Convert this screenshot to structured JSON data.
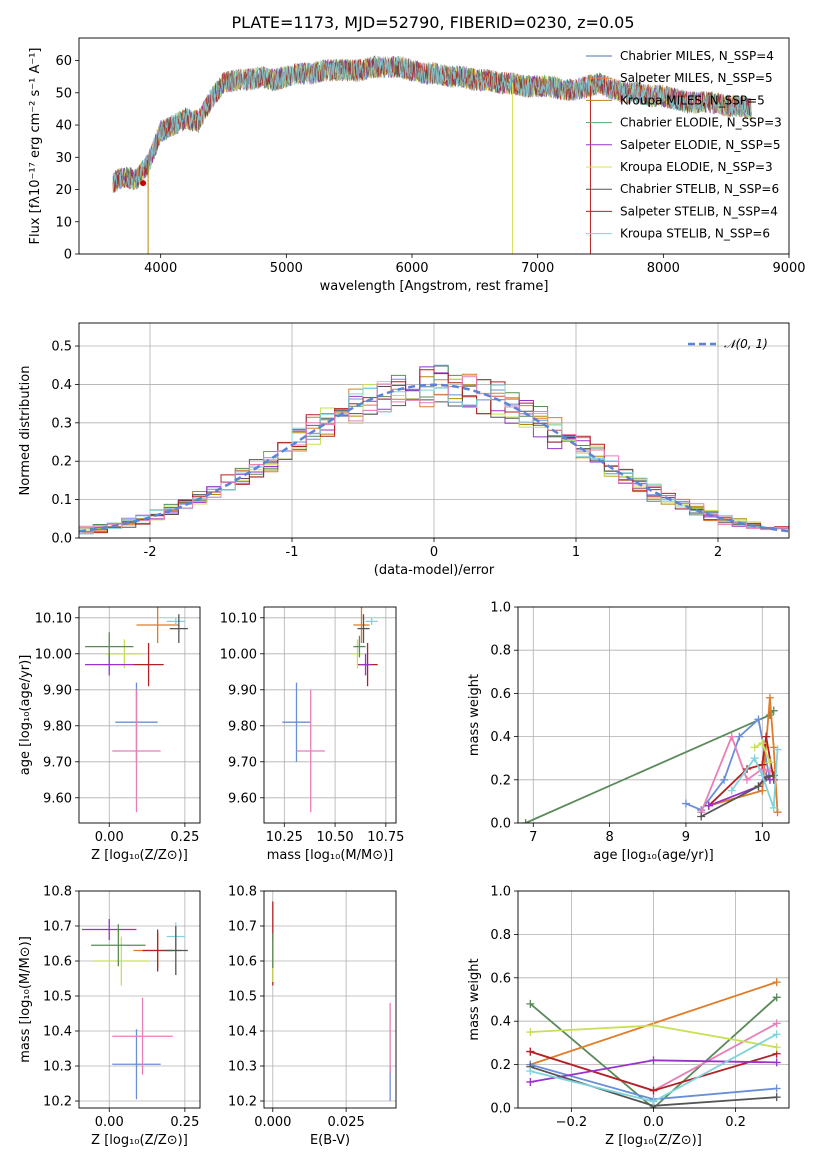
{
  "figure": {
    "title": "PLATE=1173, MJD=52790, FIBERID=0230, z=0.05"
  },
  "chart_data": [
    {
      "type": "line",
      "id": "spectrum",
      "xlabel": "wavelength [Angstrom, rest frame]",
      "ylabel": "Flux [fλ10⁻¹⁷ erg cm⁻² s⁻¹ A⁻¹]",
      "xlim": [
        3350,
        9000
      ],
      "ylim": [
        0,
        67
      ],
      "xticks": [
        4000,
        5000,
        6000,
        7000,
        8000,
        9000
      ],
      "yticks": [
        0,
        10,
        20,
        30,
        40,
        50,
        60
      ],
      "grid": false,
      "legend_position": "upper-right",
      "continuum": {
        "x": [
          3620,
          3700,
          3800,
          3900,
          4000,
          4100,
          4200,
          4300,
          4400,
          4500,
          4600,
          4700,
          4800,
          4900,
          5000,
          5100,
          5200,
          5300,
          5400,
          5500,
          5600,
          5700,
          5800,
          5900,
          6000,
          6100,
          6200,
          6300,
          6400,
          6500,
          6600,
          6700,
          6800,
          6900,
          7000,
          7100,
          7200,
          7300,
          7400,
          7500,
          7600,
          7700,
          7800,
          7900,
          8000,
          8100,
          8200,
          8300,
          8400,
          8500,
          8600,
          8700
        ],
        "y": [
          22,
          24,
          23,
          28,
          38,
          40,
          42,
          41,
          48,
          53,
          54,
          54,
          55,
          54,
          55,
          56,
          56,
          57,
          57,
          57,
          57,
          58,
          58,
          58,
          57,
          56,
          56,
          55,
          55,
          54,
          54,
          53,
          53,
          52,
          52,
          52,
          51,
          51,
          52,
          53,
          51,
          50,
          50,
          49,
          49,
          48,
          47,
          47,
          47,
          46,
          46,
          45
        ]
      },
      "series": [
        {
          "name": "Chabrier MILES, N_SSP=4",
          "color": "#4c72b0"
        },
        {
          "name": "Salpeter MILES, N_SSP=5",
          "color": "#dd8452"
        },
        {
          "name": "Kroupa MILES, N_SSP=5",
          "color": "#b8860b"
        },
        {
          "name": "Chabrier ELODIE, N_SSP=3",
          "color": "#55a868"
        },
        {
          "name": "Salpeter ELODIE, N_SSP=5",
          "color": "#9932cc"
        },
        {
          "name": "Kroupa ELODIE, N_SSP=3",
          "color": "#d8e05a"
        },
        {
          "name": "Chabrier STELIB, N_SSP=6",
          "color": "#555555"
        },
        {
          "name": "Salpeter STELIB, N_SSP=4",
          "color": "#b22222"
        },
        {
          "name": "Kroupa STELIB, N_SSP=6",
          "color": "#7fd3dd"
        }
      ]
    },
    {
      "type": "line",
      "id": "residuals",
      "xlabel": "(data-model)/error",
      "ylabel": "Normed distribution",
      "xlim": [
        -2.5,
        2.5
      ],
      "ylim": [
        0,
        0.56
      ],
      "xticks": [
        -2,
        -1,
        0,
        1,
        2
      ],
      "yticks": [
        0.0,
        0.1,
        0.2,
        0.3,
        0.4,
        0.5
      ],
      "grid": true,
      "legend": "𝒩(0, 1)",
      "legend_position": "upper-right",
      "histogram_bins": 50,
      "reference_curve": "gaussian(0,1)"
    },
    {
      "type": "scatter",
      "id": "age-vs-Z",
      "xlabel": "Z [log₁₀(Z/Z⊙)]",
      "ylabel": "age  [log₁₀(age/yr)]",
      "xlim": [
        -0.1,
        0.3
      ],
      "ylim": [
        9.53,
        10.13
      ],
      "xticks": [
        0.0,
        0.25
      ],
      "xtick_labels": [
        "0.00",
        "0.25"
      ],
      "yticks": [
        9.6,
        9.7,
        9.8,
        9.9,
        10.0,
        10.1
      ],
      "grid": true,
      "points": [
        {
          "x": 0.09,
          "y": 9.81,
          "xerr": 0.07,
          "yerr": 0.11,
          "color": "#6a8fd8"
        },
        {
          "x": 0.09,
          "y": 9.73,
          "xerr": 0.08,
          "yerr": 0.17,
          "color": "#e87fb8"
        },
        {
          "x": 0.16,
          "y": 10.08,
          "xerr": 0.07,
          "yerr": 0.05,
          "color": "#e07b28"
        },
        {
          "x": 0.13,
          "y": 9.97,
          "xerr": 0.05,
          "yerr": 0.06,
          "color": "#b22222"
        },
        {
          "x": 0.22,
          "y": 10.09,
          "xerr": 0.03,
          "yerr": 0.01,
          "color": "#7fd3dd"
        },
        {
          "x": 0.23,
          "y": 10.07,
          "xerr": 0.03,
          "yerr": 0.04,
          "color": "#555555"
        },
        {
          "x": 0.05,
          "y": 10.0,
          "xerr": 0.06,
          "yerr": 0.04,
          "color": "#c6e05a"
        },
        {
          "x": 0.0,
          "y": 9.97,
          "xerr": 0.08,
          "yerr": 0.03,
          "color": "#9932cc"
        },
        {
          "x": 0.0,
          "y": 10.02,
          "xerr": 0.08,
          "yerr": 0.04,
          "color": "#5a8a5a"
        }
      ]
    },
    {
      "type": "scatter",
      "id": "age-vs-mass",
      "xlabel": "mass [log₁₀(M/M⊙)]",
      "ylabel": "",
      "xlim": [
        10.15,
        10.8
      ],
      "ylim": [
        9.53,
        10.13
      ],
      "xticks": [
        10.25,
        10.5,
        10.75
      ],
      "xtick_labels": [
        "10.25",
        "10.50",
        "10.75"
      ],
      "yticks": [
        9.6,
        9.7,
        9.8,
        9.9,
        10.0,
        10.1
      ],
      "grid": true,
      "points": [
        {
          "x": 10.31,
          "y": 9.81,
          "xerr": 0.07,
          "yerr": 0.11,
          "color": "#6a8fd8"
        },
        {
          "x": 10.38,
          "y": 9.73,
          "xerr": 0.07,
          "yerr": 0.17,
          "color": "#e87fb8"
        },
        {
          "x": 10.63,
          "y": 10.08,
          "xerr": 0.04,
          "yerr": 0.05,
          "color": "#e07b28"
        },
        {
          "x": 10.66,
          "y": 9.97,
          "xerr": 0.05,
          "yerr": 0.06,
          "color": "#b22222"
        },
        {
          "x": 10.68,
          "y": 10.09,
          "xerr": 0.03,
          "yerr": 0.01,
          "color": "#7fd3dd"
        },
        {
          "x": 10.64,
          "y": 10.07,
          "xerr": 0.03,
          "yerr": 0.04,
          "color": "#555555"
        },
        {
          "x": 10.61,
          "y": 10.0,
          "xerr": 0.03,
          "yerr": 0.04,
          "color": "#c6e05a"
        },
        {
          "x": 10.65,
          "y": 9.97,
          "xerr": 0.03,
          "yerr": 0.03,
          "color": "#9932cc"
        },
        {
          "x": 10.62,
          "y": 10.02,
          "xerr": 0.03,
          "yerr": 0.03,
          "color": "#5a8a5a"
        }
      ]
    },
    {
      "type": "line",
      "id": "mass-weight-vs-age",
      "xlabel": "age  [log₁₀(age/yr)]",
      "ylabel": "mass weight",
      "xlim": [
        6.8,
        10.35
      ],
      "ylim": [
        0.0,
        1.0
      ],
      "xticks": [
        7,
        8,
        9,
        10
      ],
      "yticks": [
        0.0,
        0.2,
        0.4,
        0.6,
        0.8,
        1.0
      ],
      "grid": true,
      "series": [
        {
          "color": "#5a8a5a",
          "x": [
            6.9,
            10.1,
            10.15
          ],
          "y": [
            0.0,
            0.5,
            0.52
          ]
        },
        {
          "color": "#6a8fd8",
          "x": [
            9.0,
            9.2,
            9.5,
            9.7,
            9.95,
            10.1
          ],
          "y": [
            0.09,
            0.06,
            0.2,
            0.4,
            0.48,
            0.2
          ]
        },
        {
          "color": "#e07b28",
          "x": [
            9.3,
            10.0,
            10.1,
            10.15,
            10.2
          ],
          "y": [
            0.08,
            0.15,
            0.58,
            0.35,
            0.05
          ]
        },
        {
          "color": "#e87fb8",
          "x": [
            9.2,
            9.6,
            9.8,
            10.0,
            10.1
          ],
          "y": [
            0.05,
            0.4,
            0.2,
            0.25,
            0.24
          ]
        },
        {
          "color": "#b22222",
          "x": [
            9.3,
            9.8,
            10.0,
            10.05,
            10.15
          ],
          "y": [
            0.08,
            0.25,
            0.27,
            0.4,
            0.2
          ]
        },
        {
          "color": "#9932cc",
          "x": [
            9.3,
            9.95,
            10.05,
            10.1
          ],
          "y": [
            0.08,
            0.17,
            0.22,
            0.2
          ]
        },
        {
          "color": "#c6e05a",
          "x": [
            9.9,
            10.0,
            10.1
          ],
          "y": [
            0.35,
            0.37,
            0.28
          ]
        },
        {
          "color": "#555555",
          "x": [
            9.2,
            9.95,
            10.05,
            10.15
          ],
          "y": [
            0.03,
            0.17,
            0.21,
            0.22
          ]
        },
        {
          "color": "#7fd3dd",
          "x": [
            9.6,
            9.9,
            10.0,
            10.15,
            10.2
          ],
          "y": [
            0.15,
            0.3,
            0.22,
            0.07,
            0.34
          ]
        }
      ]
    },
    {
      "type": "scatter",
      "id": "mass-vs-Z",
      "xlabel": "Z [log₁₀(Z/Z⊙)]",
      "ylabel": "mass [log₁₀(M/M⊙)]",
      "xlim": [
        -0.1,
        0.3
      ],
      "ylim": [
        10.18,
        10.8
      ],
      "xticks": [
        0.0,
        0.25
      ],
      "xtick_labels": [
        "0.00",
        "0.25"
      ],
      "yticks": [
        10.2,
        10.3,
        10.4,
        10.5,
        10.6,
        10.7,
        10.8
      ],
      "grid": true,
      "points": [
        {
          "x": 0.09,
          "y": 10.305,
          "xerr": 0.08,
          "yerr": 0.1,
          "color": "#6a8fd8"
        },
        {
          "x": 0.11,
          "y": 10.385,
          "xerr": 0.1,
          "yerr": 0.11,
          "color": "#e87fb8"
        },
        {
          "x": 0.16,
          "y": 10.63,
          "xerr": 0.08,
          "yerr": 0.05,
          "color": "#e07b28"
        },
        {
          "x": 0.16,
          "y": 10.63,
          "xerr": 0.05,
          "yerr": 0.06,
          "color": "#b22222"
        },
        {
          "x": 0.22,
          "y": 10.67,
          "xerr": 0.03,
          "yerr": 0.04,
          "color": "#7fd3dd"
        },
        {
          "x": 0.22,
          "y": 10.63,
          "xerr": 0.04,
          "yerr": 0.07,
          "color": "#555555"
        },
        {
          "x": 0.04,
          "y": 10.6,
          "xerr": 0.09,
          "yerr": 0.07,
          "color": "#c6e05a"
        },
        {
          "x": 0.0,
          "y": 10.69,
          "xerr": 0.09,
          "yerr": 0.03,
          "color": "#9932cc"
        },
        {
          "x": 0.03,
          "y": 10.645,
          "xerr": 0.09,
          "yerr": 0.06,
          "color": "#5a8a5a"
        }
      ]
    },
    {
      "type": "scatter",
      "id": "mass-vs-ebv",
      "xlabel": "E(B-V)",
      "ylabel": "",
      "xlim": [
        -0.003,
        0.042
      ],
      "ylim": [
        10.18,
        10.8
      ],
      "xticks": [
        0.0,
        0.025
      ],
      "xtick_labels": [
        "0.000",
        "0.025"
      ],
      "yticks": [
        10.2,
        10.3,
        10.4,
        10.5,
        10.6,
        10.7,
        10.8
      ],
      "grid": true,
      "points": [
        {
          "x": 0.04,
          "y": 10.25,
          "xerr": 0,
          "yerr": 0.05,
          "color": "#6a8fd8"
        },
        {
          "x": 0.04,
          "y": 10.38,
          "xerr": 0,
          "yerr": 0.1,
          "color": "#e87fb8"
        },
        {
          "x": 0.0,
          "y": 10.65,
          "xerr": 0,
          "yerr": 0.12,
          "color": "#b22222"
        },
        {
          "x": 0.0,
          "y": 10.6,
          "xerr": 0,
          "yerr": 0.06,
          "color": "#c6e05a"
        },
        {
          "x": 0.0,
          "y": 10.63,
          "xerr": 0,
          "yerr": 0.05,
          "color": "#5a8a5a"
        }
      ]
    },
    {
      "type": "line",
      "id": "mass-weight-vs-Z",
      "xlabel": "Z [log₁₀(Z/Z⊙)]",
      "ylabel": "mass weight",
      "xlim": [
        -0.33,
        0.33
      ],
      "ylim": [
        0.0,
        1.0
      ],
      "xticks": [
        -0.2,
        0.0,
        0.2
      ],
      "xtick_labels": [
        "−0.2",
        "0.0",
        "0.2"
      ],
      "yticks": [
        0.0,
        0.2,
        0.4,
        0.6,
        0.8,
        1.0
      ],
      "grid": true,
      "series": [
        {
          "color": "#5a8a5a",
          "x": [
            -0.3,
            0.0,
            0.3
          ],
          "y": [
            0.48,
            0.0,
            0.51
          ]
        },
        {
          "color": "#e07b28",
          "x": [
            -0.3,
            0.3
          ],
          "y": [
            0.2,
            0.58
          ]
        },
        {
          "color": "#6a8fd8",
          "x": [
            -0.3,
            0.0,
            0.3
          ],
          "y": [
            0.2,
            0.04,
            0.09
          ]
        },
        {
          "color": "#e87fb8",
          "x": [
            -0.3,
            0.0,
            0.3
          ],
          "y": [
            0.26,
            0.08,
            0.39
          ]
        },
        {
          "color": "#b22222",
          "x": [
            -0.3,
            0.0,
            0.3
          ],
          "y": [
            0.26,
            0.08,
            0.25
          ]
        },
        {
          "color": "#9932cc",
          "x": [
            -0.3,
            0.0,
            0.3
          ],
          "y": [
            0.12,
            0.22,
            0.21
          ]
        },
        {
          "color": "#c6e05a",
          "x": [
            -0.3,
            0.0,
            0.3
          ],
          "y": [
            0.35,
            0.38,
            0.28
          ]
        },
        {
          "color": "#555555",
          "x": [
            -0.3,
            0.0,
            0.3
          ],
          "y": [
            0.19,
            0.01,
            0.05
          ]
        },
        {
          "color": "#7fd3dd",
          "x": [
            -0.3,
            0.0,
            0.3
          ],
          "y": [
            0.17,
            0.03,
            0.34
          ]
        }
      ]
    }
  ]
}
